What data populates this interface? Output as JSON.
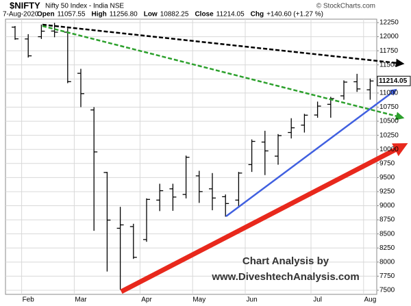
{
  "chart_data": {
    "type": "ohlc",
    "title": "$NIFTY",
    "subtitle": "Nifty 50 Index - India NSE",
    "credit": "© StockCharts.com",
    "date": "7-Aug-2020",
    "stats": [
      {
        "label": "Open",
        "value": "11057.55"
      },
      {
        "label": "High",
        "value": "11256.80"
      },
      {
        "label": "Low",
        "value": "10882.25"
      },
      {
        "label": "Close",
        "value": "11214.05"
      },
      {
        "label": "Chg",
        "value": "+140.60 (+1.27 %)"
      }
    ],
    "annotations": [
      "Chart Analysis by",
      "www.DiveshtechAnalysis.com"
    ],
    "categories": [
      null,
      "Feb",
      null,
      null,
      null,
      "Mar",
      null,
      null,
      null,
      null,
      "Apr",
      null,
      null,
      null,
      "May",
      null,
      null,
      null,
      "Jun",
      null,
      null,
      null,
      null,
      "Jul",
      null,
      null,
      null,
      "Aug"
    ],
    "open": [
      12170,
      11960,
      12000,
      12100,
      12080,
      11350,
      10700,
      9590,
      8600,
      8630,
      8400,
      9100,
      9300,
      9200,
      9530,
      9300,
      9160,
      9100,
      9730,
      10130,
      9880,
      10300,
      10430,
      10610,
      10800,
      10950,
      11200,
      11057.55
    ],
    "high": [
      12190,
      12045,
      12215,
      12245,
      12150,
      11430,
      10750,
      9600,
      8980,
      8680,
      9131,
      9390,
      9390,
      9890,
      9620,
      9580,
      9200,
      9600,
      10177,
      10330,
      10272,
      10553,
      10631,
      10848,
      10933,
      11225,
      11341,
      11256.8
    ],
    "low": [
      11945,
      11630,
      11960,
      11990,
      11175,
      10750,
      8555,
      7832,
      7511,
      8056,
      8360,
      8905,
      8910,
      9130,
      9050,
      8920,
      8806,
      8970,
      9600,
      9544,
      9728,
      10194,
      10299,
      10562,
      10562,
      10882,
      11020,
      10882.25
    ],
    "close": [
      11962,
      11660,
      12098,
      12080,
      11202,
      10989,
      9955,
      8745,
      8660,
      8084,
      9112,
      9267,
      9154,
      9860,
      9251,
      9137,
      9039,
      9580,
      10142,
      9973,
      10244,
      10383,
      10607,
      10768,
      10902,
      11194,
      11073,
      11214.05
    ],
    "color": "#000000",
    "ylim": [
      7427,
      12311
    ],
    "yticks": [
      7500,
      7750,
      8000,
      8250,
      8500,
      8750,
      9000,
      9250,
      9500,
      9750,
      10000,
      10250,
      10500,
      10750,
      11000,
      11250,
      11500,
      11750,
      12000,
      12250
    ],
    "grid": true
  }
}
